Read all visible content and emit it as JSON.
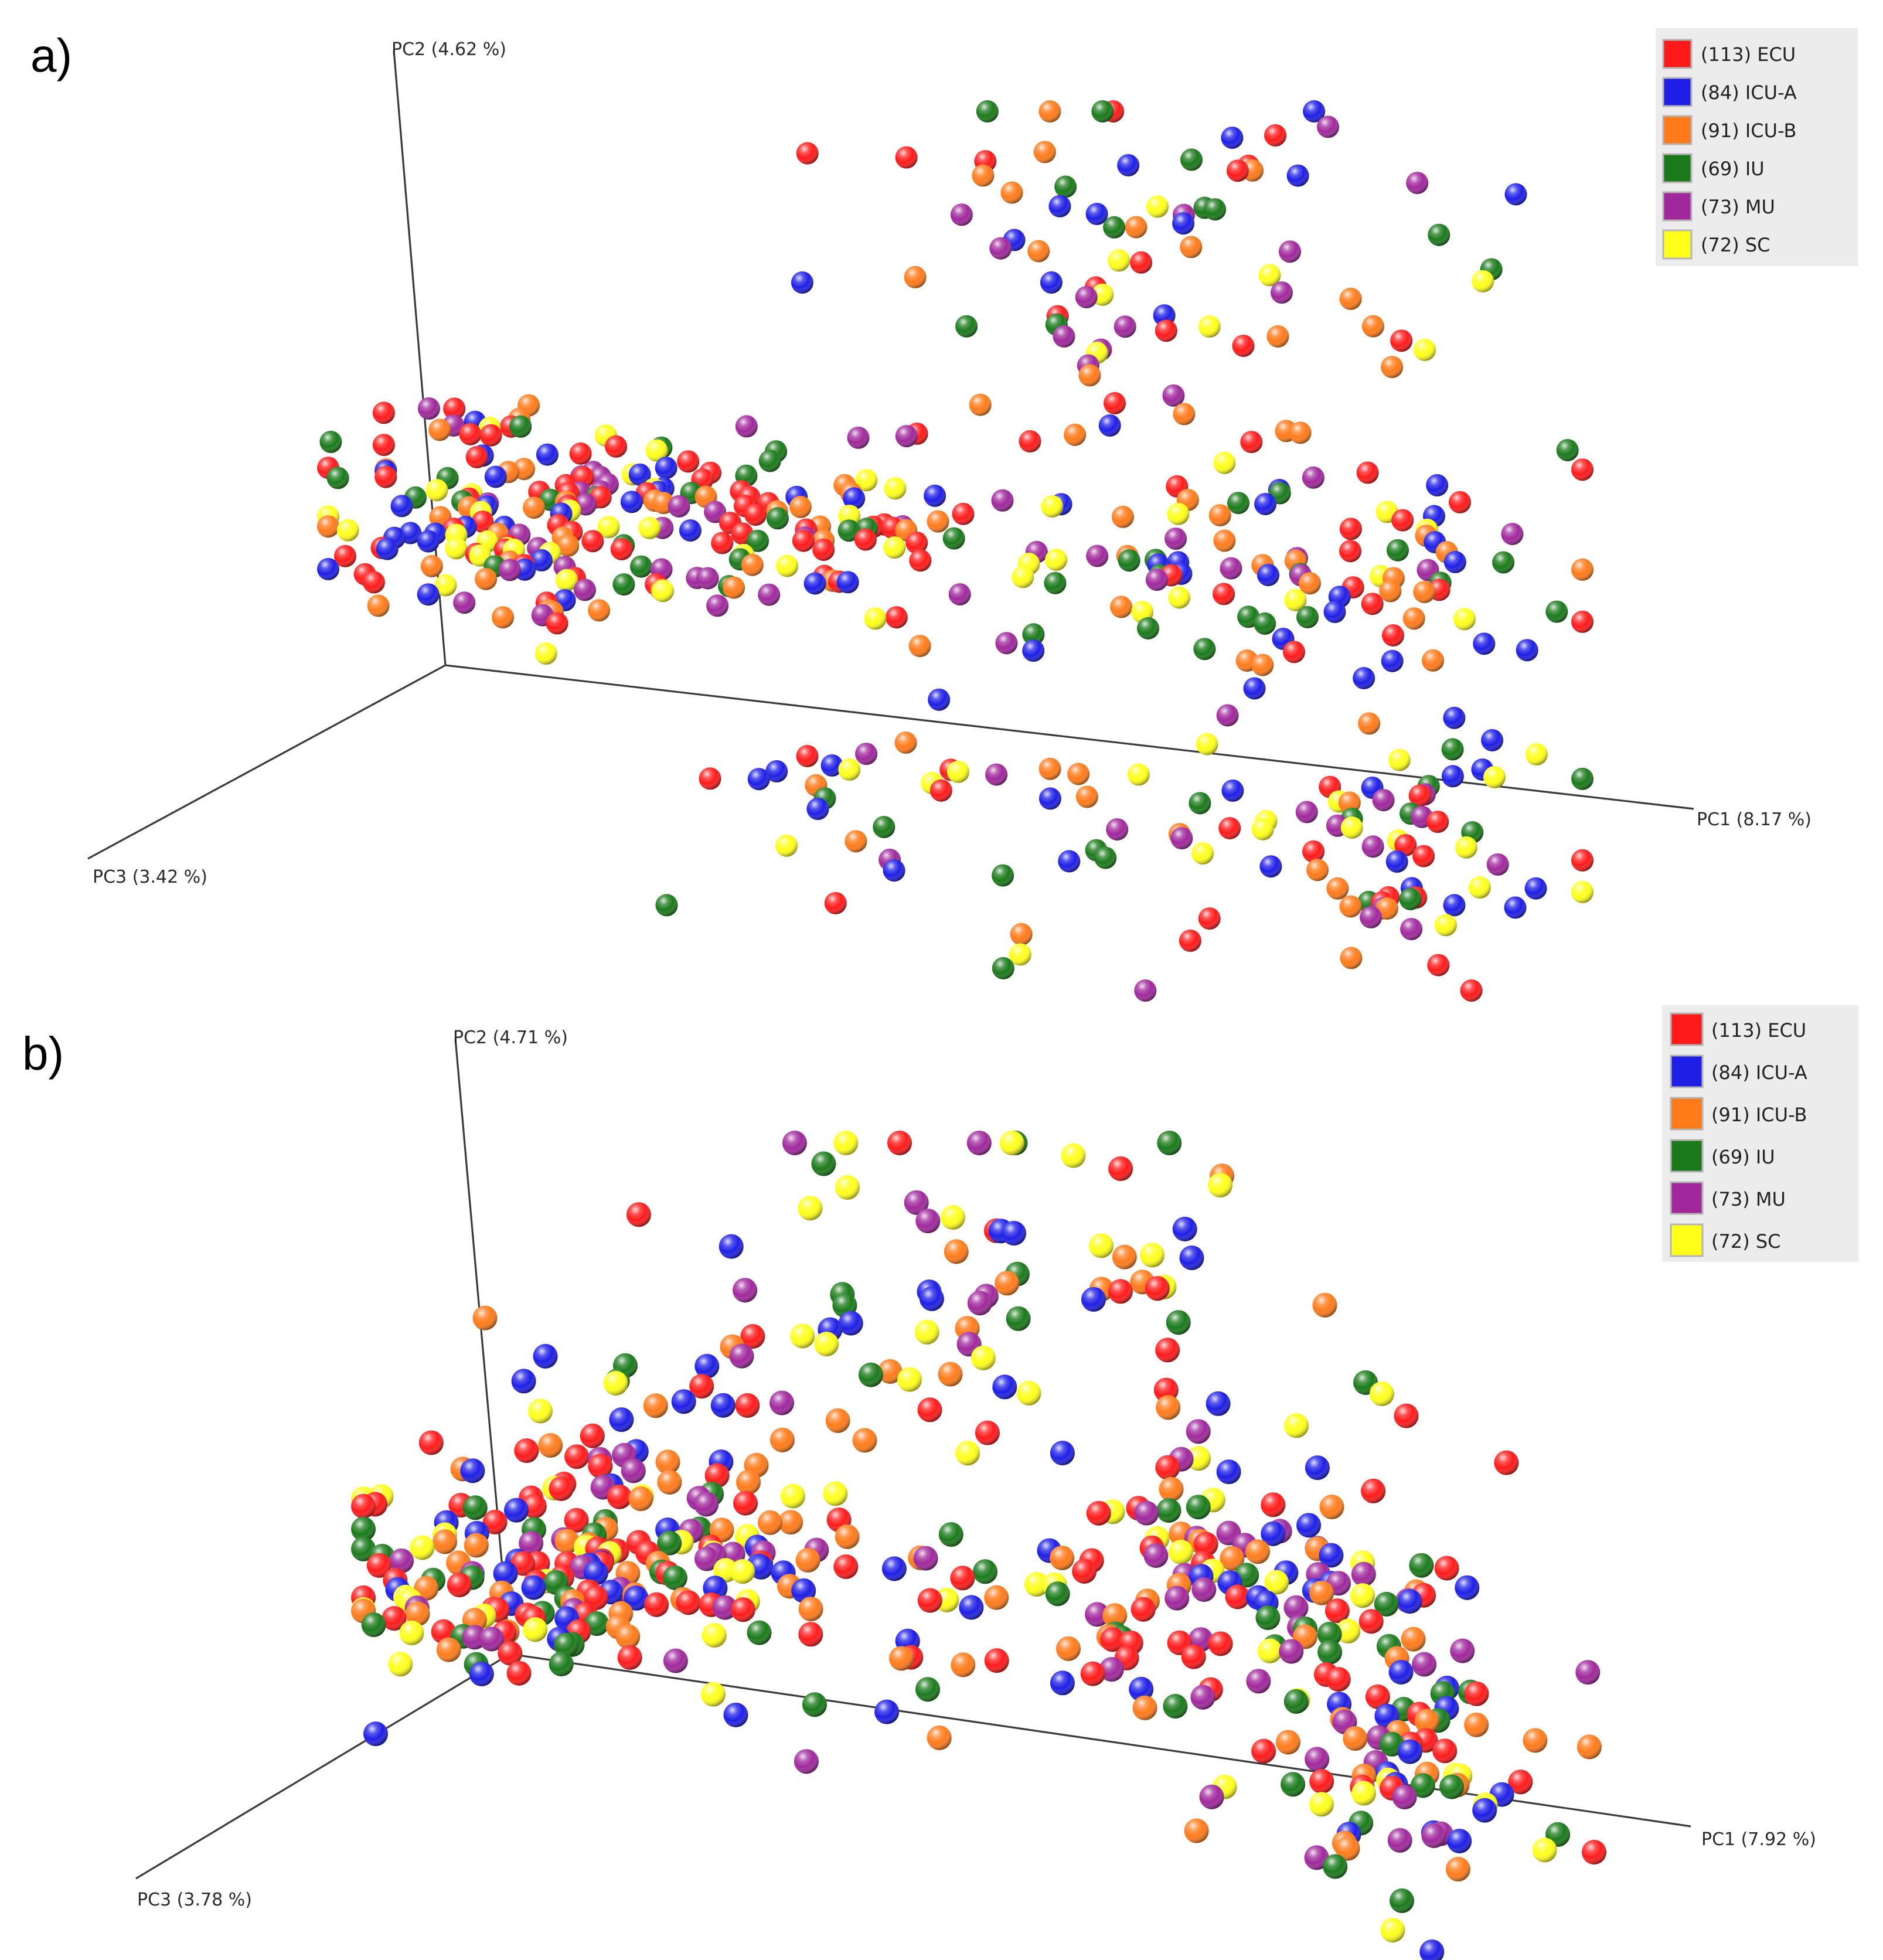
{
  "figure": {
    "panels": [
      "a)",
      "b)"
    ]
  },
  "chart_data": [
    {
      "panel": "a)",
      "type": "scatter",
      "title": "",
      "axes": {
        "x": "PC1 (8.17 %)",
        "y": "PC2 (4.62 %)",
        "z": "PC3 (3.42 %)"
      },
      "legend_position": "top-right",
      "legend": [
        {
          "label": "(113) ECU",
          "color": "#ff1a1a"
        },
        {
          "label": "(84) ICU-A",
          "color": "#1e1ee6"
        },
        {
          "label": "(91) ICU-B",
          "color": "#ff7b1a"
        },
        {
          "label": "(69) IU",
          "color": "#1a7a1a"
        },
        {
          "label": "(73) MU",
          "color": "#a0289c"
        },
        {
          "label": "(72) SC",
          "color": "#ffff1a"
        }
      ],
      "series": [
        {
          "name": "ECU",
          "color": "#ff1a1a",
          "count": 113
        },
        {
          "name": "ICU-A",
          "color": "#1e1ee6",
          "count": 84
        },
        {
          "name": "ICU-B",
          "color": "#ff7b1a",
          "count": 91
        },
        {
          "name": "IU",
          "color": "#1a7a1a",
          "count": 69
        },
        {
          "name": "MU",
          "color": "#a0289c",
          "count": 73
        },
        {
          "name": "SC",
          "color": "#ffff1a",
          "count": 72
        }
      ]
    },
    {
      "panel": "b)",
      "type": "scatter",
      "title": "",
      "axes": {
        "x": "PC1 (7.92 %)",
        "y": "PC2 (4.71 %)",
        "z": "PC3 (3.78 %)"
      },
      "legend_position": "top-right",
      "legend": [
        {
          "label": "(113) ECU",
          "color": "#ff1a1a"
        },
        {
          "label": "(84) ICU-A",
          "color": "#1e1ee6"
        },
        {
          "label": "(91) ICU-B",
          "color": "#ff7b1a"
        },
        {
          "label": "(69) IU",
          "color": "#1a7a1a"
        },
        {
          "label": "(73) MU",
          "color": "#a0289c"
        },
        {
          "label": "(72) SC",
          "color": "#ffff1a"
        }
      ],
      "series": [
        {
          "name": "ECU",
          "color": "#ff1a1a",
          "count": 113
        },
        {
          "name": "ICU-A",
          "color": "#1e1ee6",
          "count": 84
        },
        {
          "name": "ICU-B",
          "color": "#ff7b1a",
          "count": 91
        },
        {
          "name": "IU",
          "color": "#1a7a1a",
          "count": 69
        },
        {
          "name": "MU",
          "color": "#a0289c",
          "count": 73
        },
        {
          "name": "SC",
          "color": "#ffff1a",
          "count": 72
        }
      ]
    }
  ]
}
